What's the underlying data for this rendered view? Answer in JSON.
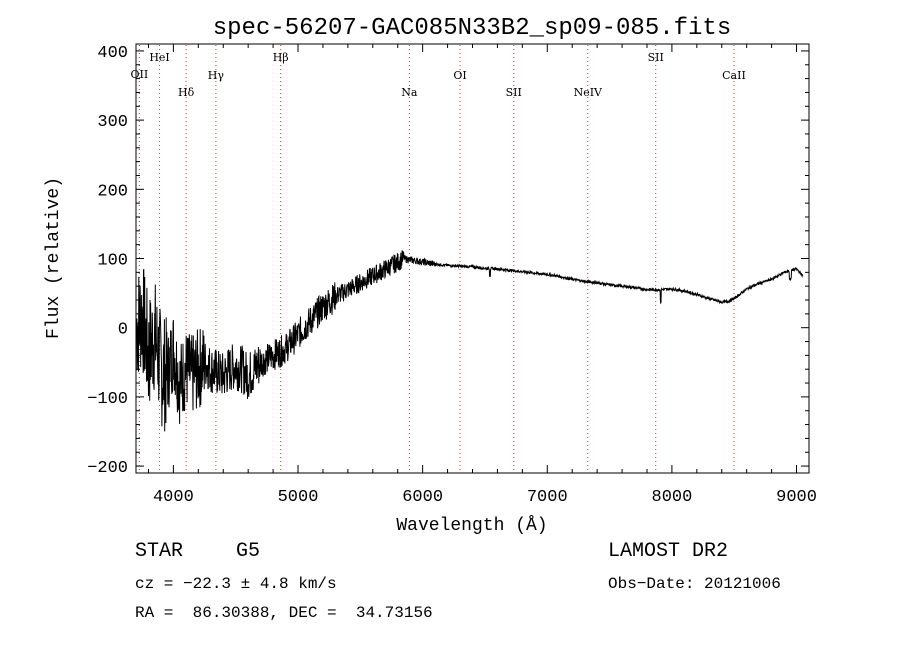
{
  "chart_data": {
    "type": "line",
    "title": "spec-56207-GAC085N33B2_sp09-085.fits",
    "xlabel": "Wavelength (Å)",
    "ylabel": "Flux (relative)",
    "xlim": [
      3700,
      9100
    ],
    "ylim": [
      -210,
      410
    ],
    "xticks": [
      4000,
      5000,
      6000,
      7000,
      8000,
      9000
    ],
    "yticks": [
      -200,
      -100,
      0,
      100,
      200,
      300,
      400
    ],
    "xtick_labels": [
      "4000",
      "5000",
      "6000",
      "7000",
      "8000",
      "9000"
    ],
    "ytick_labels": [
      "−200",
      "−100",
      "0",
      "100",
      "200",
      "300",
      "400"
    ],
    "grid": false,
    "line_color": "#000000",
    "marker_color": "#e0302a",
    "lines": [
      {
        "label": "OII",
        "x": 3727,
        "level": "low"
      },
      {
        "label": "HeI",
        "x": 3889,
        "level": "high"
      },
      {
        "label": "Hδ",
        "x": 4102,
        "level": "lower"
      },
      {
        "label": "Hγ",
        "x": 4341,
        "level": "mid"
      },
      {
        "label": "Hβ",
        "x": 4861,
        "level": "high"
      },
      {
        "label": "Na",
        "x": 5893,
        "level": "lower"
      },
      {
        "label": "OI",
        "x": 6300,
        "level": "mid"
      },
      {
        "label": "SII",
        "x": 6731,
        "level": "lower"
      },
      {
        "label": "NeIV",
        "x": 7325,
        "level": "lower"
      },
      {
        "label": "SII",
        "x": 7870,
        "level": "high"
      },
      {
        "label": "CaII",
        "x": 8498,
        "level": "mid"
      }
    ],
    "series": [
      {
        "x": [
          3700,
          3750,
          3800,
          3850,
          3900,
          3950,
          4000,
          4050,
          4100,
          4150,
          4200,
          4250,
          4300,
          4350,
          4400,
          4450,
          4500,
          4550,
          4600,
          4700,
          4800,
          4900,
          5000,
          5100,
          5200,
          5300,
          5400,
          5500,
          5600,
          5700,
          5800,
          5850,
          5900,
          6000,
          6100,
          6200,
          6300,
          6400,
          6500,
          6600,
          6700,
          6800,
          6900,
          7000,
          7100,
          7200,
          7300,
          7400,
          7500,
          7600,
          7700,
          7800,
          7900,
          8000,
          8100,
          8200,
          8300,
          8400,
          8450,
          8500,
          8600,
          8700,
          8800,
          8900,
          9000,
          9050
        ],
        "y": [
          0,
          20,
          -40,
          -10,
          -60,
          -70,
          -30,
          -80,
          -60,
          -70,
          -60,
          -50,
          -60,
          -65,
          -70,
          -60,
          -55,
          -60,
          -70,
          -50,
          -40,
          -30,
          -10,
          10,
          30,
          45,
          55,
          65,
          75,
          85,
          95,
          100,
          98,
          95,
          92,
          90,
          89,
          88,
          86,
          85,
          83,
          81,
          79,
          77,
          74,
          70,
          67,
          65,
          62,
          60,
          58,
          55,
          55,
          56,
          53,
          48,
          42,
          37,
          38,
          42,
          56,
          64,
          70,
          80,
          85,
          75
        ]
      }
    ]
  },
  "info": {
    "object_class": "STAR",
    "subclass": "G5",
    "redshift": "cz = −22.3 ± 4.8 km/s",
    "coords": "RA =  86.30388, DEC =  34.73156",
    "survey": "LAMOST DR2",
    "obs_date": "Obs−Date: 20121006"
  }
}
